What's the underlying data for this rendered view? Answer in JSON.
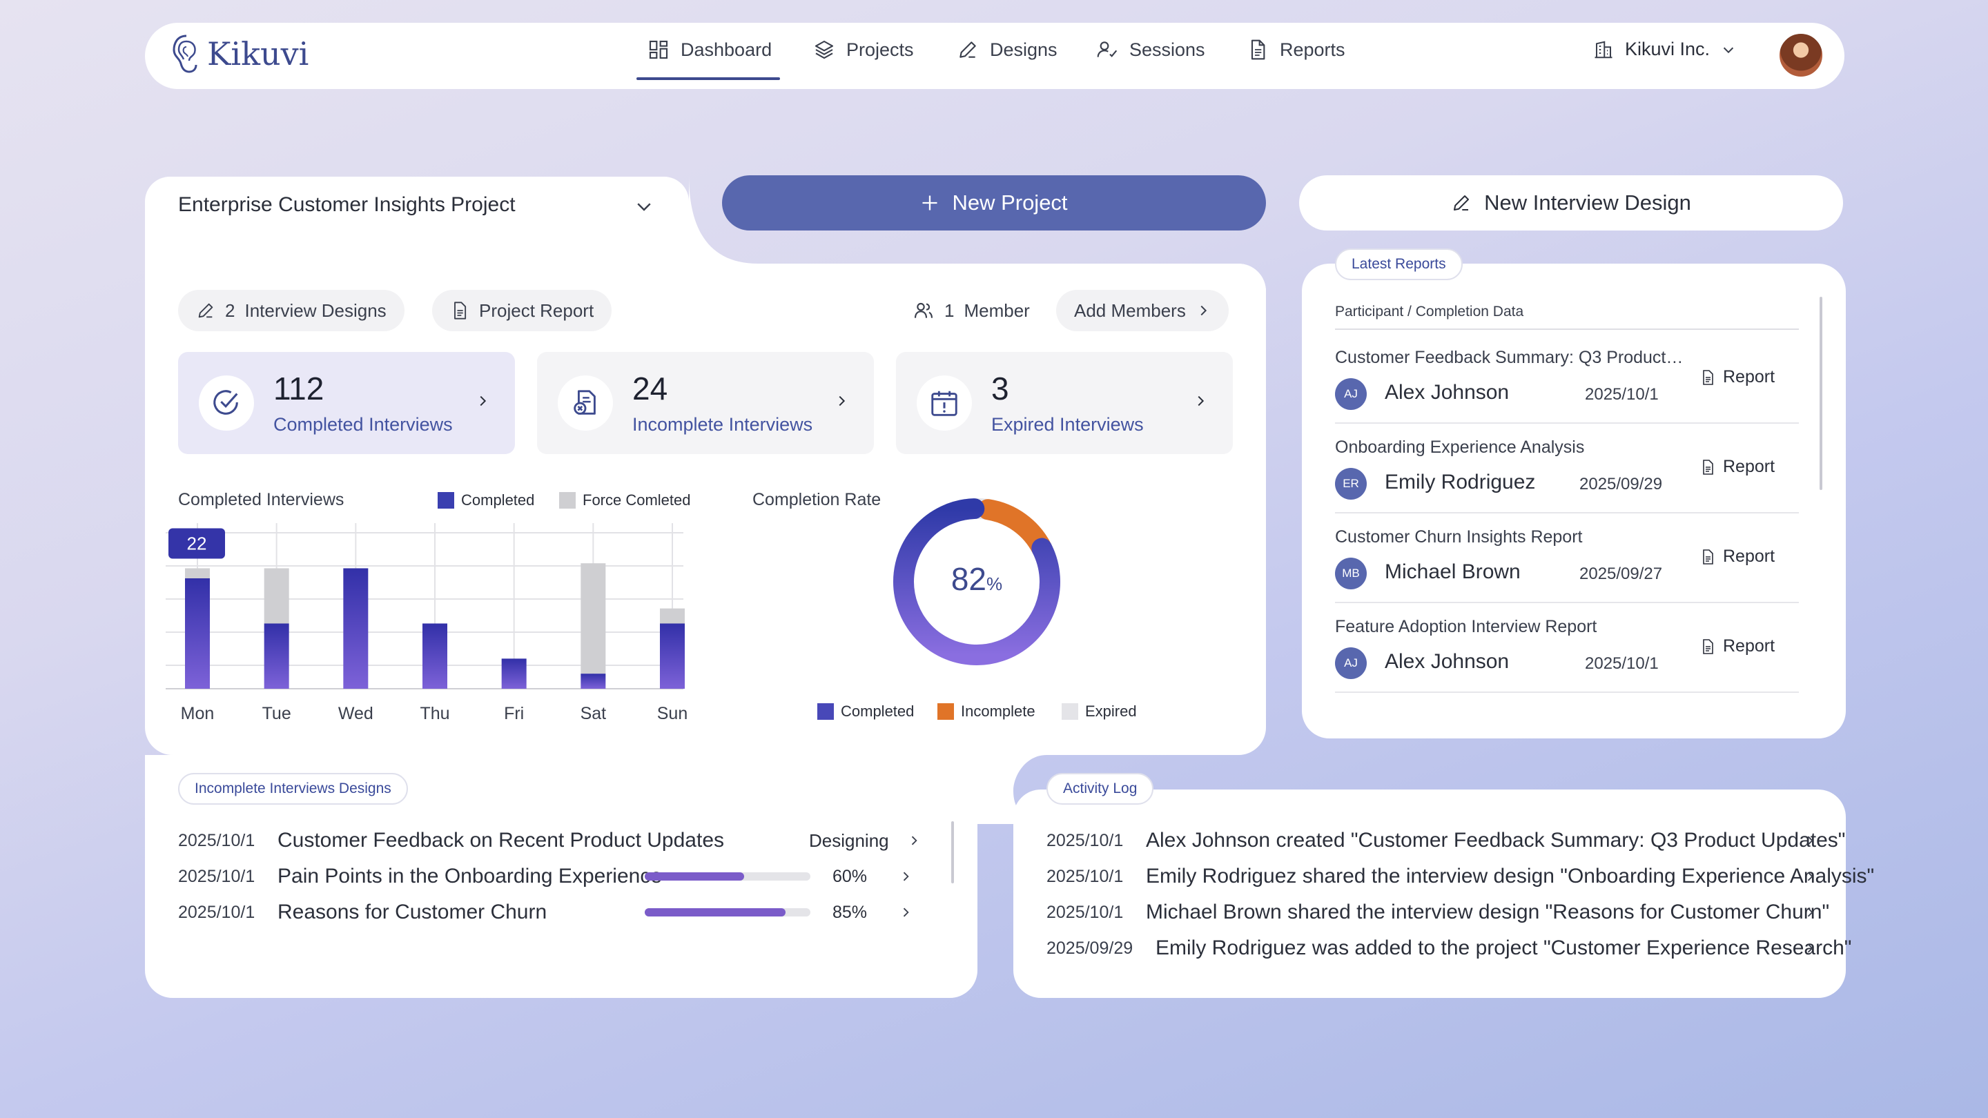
{
  "app": {
    "name": "Kikuvi"
  },
  "nav": {
    "items": [
      {
        "label": "Dashboard",
        "icon": "grid-icon"
      },
      {
        "label": "Projects",
        "icon": "layers-icon"
      },
      {
        "label": "Designs",
        "icon": "pencil-icon"
      },
      {
        "label": "Sessions",
        "icon": "user-check-icon"
      },
      {
        "label": "Reports",
        "icon": "document-icon"
      }
    ],
    "active": "Dashboard",
    "company": "Kikuvi Inc."
  },
  "project": {
    "selected": "Enterprise Customer Insights Project",
    "new_project_label": "New Project",
    "new_design_label": "New Interview Design",
    "designs_count": "2",
    "designs_label": "Interview Designs",
    "report_label": "Project Report",
    "member_count": "1",
    "member_label": "Member",
    "add_members_label": "Add Members"
  },
  "stats": [
    {
      "value": "112",
      "label": "Completed Interviews",
      "icon": "check-circle-icon"
    },
    {
      "value": "24",
      "label": "Incomplete Interviews",
      "icon": "document-x-icon"
    },
    {
      "value": "3",
      "label": "Expired Interviews",
      "icon": "calendar-alert-icon"
    }
  ],
  "chart_data": [
    {
      "type": "bar",
      "title": "Completed Interviews",
      "categories": [
        "Mon",
        "Tue",
        "Wed",
        "Thu",
        "Fri",
        "Sat",
        "Sun"
      ],
      "series": [
        {
          "name": "Completed",
          "values": [
            22,
            13,
            24,
            13,
            6,
            3,
            13
          ],
          "color": "#3a3fb0"
        },
        {
          "name": "Force Comleted",
          "values": [
            2,
            11,
            0,
            0,
            0,
            22,
            3
          ],
          "color": "#cfcfd2"
        }
      ],
      "ylim": [
        0,
        33
      ],
      "highlight_label": "22",
      "grid": true,
      "legend": "top"
    },
    {
      "type": "pie",
      "title": "Completion Rate",
      "center_value": "82",
      "center_unit": "%",
      "slices": [
        {
          "name": "Completed",
          "value": 82,
          "color": "#4848b8"
        },
        {
          "name": "Incomplete",
          "value": 15,
          "color": "#e07428"
        },
        {
          "name": "Expired",
          "value": 3,
          "color": "#e4e4e8"
        }
      ]
    }
  ],
  "reports": {
    "tag": "Latest Reports",
    "header": "Participant /  Completion Data",
    "button_label": "Report",
    "items": [
      {
        "title": "Customer Feedback Summary: Q3 Product…",
        "initials": "AJ",
        "name": "Alex Johnson",
        "date": "2025/10/1"
      },
      {
        "title": "Onboarding Experience Analysis",
        "initials": "ER",
        "name": "Emily Rodriguez",
        "date": "2025/09/29"
      },
      {
        "title": "Customer Churn Insights Report",
        "initials": "MB",
        "name": "Michael Brown",
        "date": "2025/09/27"
      },
      {
        "title": "Feature Adoption Interview Report",
        "initials": "AJ",
        "name": "Alex Johnson",
        "date": "2025/10/1"
      }
    ]
  },
  "incomplete": {
    "tag": "Incomplete Interviews Designs",
    "items": [
      {
        "date": "2025/10/1",
        "title": "Customer Feedback on Recent Product Updates",
        "status": "Designing"
      },
      {
        "date": "2025/10/1",
        "title": "Pain Points in the Onboarding Experience",
        "progress": 0.6,
        "progress_label": "60%"
      },
      {
        "date": "2025/10/1",
        "title": "Reasons for Customer Churn",
        "progress": 0.85,
        "progress_label": "85%"
      }
    ]
  },
  "activity": {
    "tag": "Activity Log",
    "items": [
      {
        "date": "2025/10/1",
        "text": "Alex Johnson created \"Customer Feedback Summary: Q3 Product Updates\""
      },
      {
        "date": "2025/10/1",
        "text": "Emily Rodriguez shared the interview design \"Onboarding Experience Analysis\""
      },
      {
        "date": "2025/10/1",
        "text": "Michael Brown shared the interview design \"Reasons for Customer Churn\""
      },
      {
        "date": "2025/09/29",
        "text": "Emily Rodriguez was added to the project \"Customer Experience Research\""
      }
    ]
  }
}
